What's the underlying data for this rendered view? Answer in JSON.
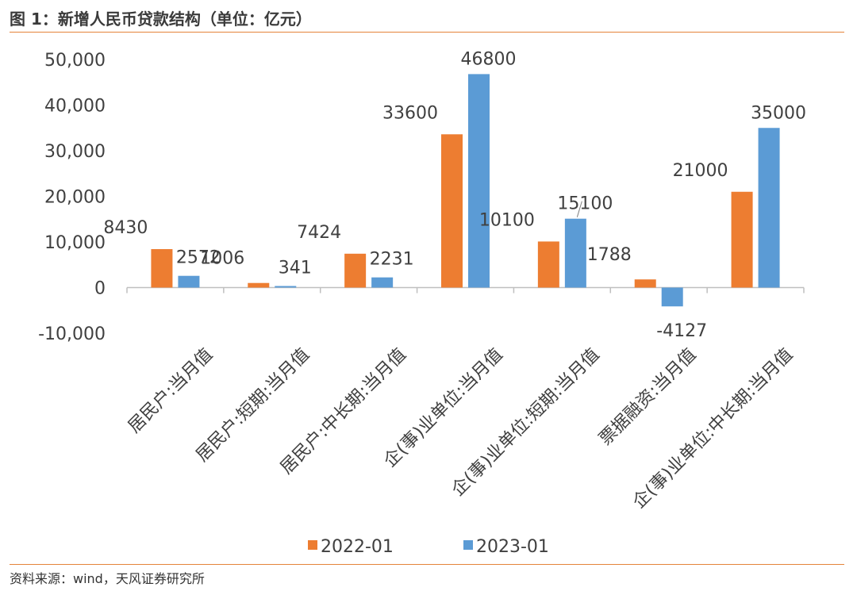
{
  "title": "图 1：新增人民币贷款结构（单位：亿元）",
  "source": "资料来源：wind，天风证券研究所",
  "colors": {
    "series1": "#ed7d31",
    "series2": "#5b9bd5",
    "accent_rule": "#e4843a"
  },
  "chart_data": {
    "type": "bar",
    "categories": [
      "居民户:当月值",
      "居民户:短期:当月值",
      "居民户:中长期:当月值",
      "企(事)业单位:当月值",
      "企(事)业单位:短期:当月值",
      "票据融资:当月值",
      "企(事)业单位:中长期:当月值"
    ],
    "series": [
      {
        "name": "2022-01",
        "values": [
          8430,
          1006,
          7424,
          33600,
          10100,
          1788,
          21000
        ]
      },
      {
        "name": "2023-01",
        "values": [
          2572,
          341,
          2231,
          46800,
          15100,
          -4127,
          35000
        ]
      }
    ],
    "data_labels": [
      [
        "8430",
        "1006",
        "7424",
        "33600",
        "10100",
        "1788",
        "21000"
      ],
      [
        "2572",
        "341",
        "2231",
        "46800",
        "15100",
        "-4127",
        "35000"
      ]
    ],
    "yticks": [
      "50,000",
      "40,000",
      "30,000",
      "20,000",
      "10,000",
      "0",
      "-10,000"
    ],
    "ytick_values": [
      50000,
      40000,
      30000,
      20000,
      10000,
      0,
      -10000
    ],
    "ylim": [
      -10000,
      50000
    ],
    "grid": false,
    "legend_position": "bottom"
  }
}
